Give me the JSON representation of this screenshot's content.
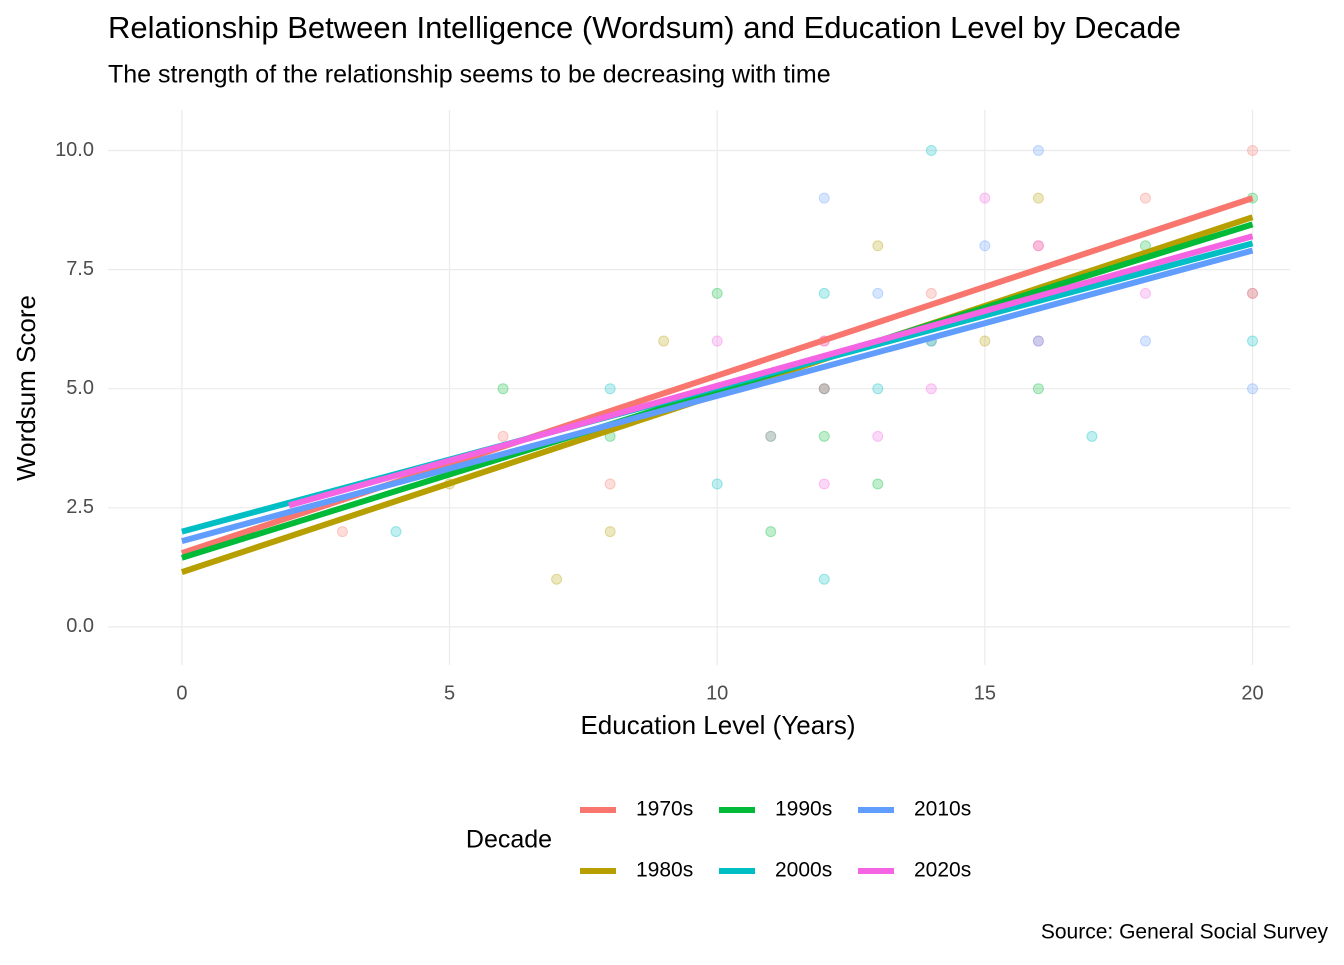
{
  "chart_data": {
    "type": "line",
    "title": "Relationship Between Intelligence (Wordsum) and Education Level by Decade",
    "subtitle": "The strength of the relationship seems to be decreasing with time",
    "x_label": "Education Level (Years)",
    "y_label": "Wordsum Score",
    "caption": "Source: General Social Survey",
    "legend_title": "Decade",
    "legend": "bottom",
    "xlim": [
      -1.38,
      20.7
    ],
    "ylim": [
      -0.8,
      10.85
    ],
    "xticks": [
      0,
      5,
      10,
      15,
      20
    ],
    "yticks": [
      {
        "value": 0,
        "label": "0.0"
      },
      2.5,
      {
        "value": 5,
        "label": "5.0"
      },
      7.5,
      {
        "value": 10,
        "label": "10.0"
      }
    ],
    "grid": true,
    "series": [
      {
        "name": "1970s",
        "color": "#f8766d",
        "x": [
          0,
          20
        ],
        "values": [
          1.55,
          9.0
        ],
        "points_x": [
          12,
          16,
          8,
          14,
          10,
          18,
          20,
          6,
          3,
          12
        ],
        "points_y": [
          6,
          8,
          3,
          7,
          5,
          9,
          10,
          4,
          2,
          5
        ]
      },
      {
        "name": "1980s",
        "color": "#b79f00",
        "x": [
          0,
          20
        ],
        "values": [
          1.15,
          8.6
        ],
        "points_x": [
          12,
          11,
          9,
          13,
          16,
          8,
          5,
          20,
          7,
          15
        ],
        "points_y": [
          5,
          4,
          6,
          8,
          9,
          2,
          3,
          7,
          1,
          6
        ]
      },
      {
        "name": "1990s",
        "color": "#00ba38",
        "x": [
          0,
          20
        ],
        "values": [
          1.45,
          8.45
        ],
        "points_x": [
          12,
          14,
          10,
          16,
          8,
          13,
          18,
          6,
          20,
          11
        ],
        "points_y": [
          4,
          6,
          7,
          5,
          4,
          3,
          8,
          5,
          9,
          2
        ]
      },
      {
        "name": "2000s",
        "color": "#00bfc4",
        "x": [
          0,
          20
        ],
        "values": [
          2.0,
          8.05
        ],
        "points_x": [
          12,
          16,
          14,
          10,
          13,
          20,
          8,
          17,
          4,
          12
        ],
        "points_y": [
          7,
          6,
          10,
          3,
          5,
          6,
          5,
          4,
          2,
          1
        ]
      },
      {
        "name": "2010s",
        "color": "#619cff",
        "x": [
          0,
          20
        ],
        "values": [
          1.8,
          7.9
        ],
        "points_x": [
          12,
          16,
          14,
          13,
          15,
          12,
          18,
          20,
          11,
          16
        ],
        "points_y": [
          5,
          7,
          6,
          7,
          8,
          9,
          6,
          5,
          4,
          10
        ]
      },
      {
        "name": "2020s",
        "color": "#f564e3",
        "x": [
          2,
          20
        ],
        "values": [
          2.55,
          8.2
        ],
        "points_x": [
          12,
          16,
          14,
          16,
          13,
          12,
          20,
          18,
          10,
          15
        ],
        "points_y": [
          6,
          6,
          5,
          8,
          4,
          3,
          7,
          7,
          6,
          9
        ]
      }
    ]
  }
}
